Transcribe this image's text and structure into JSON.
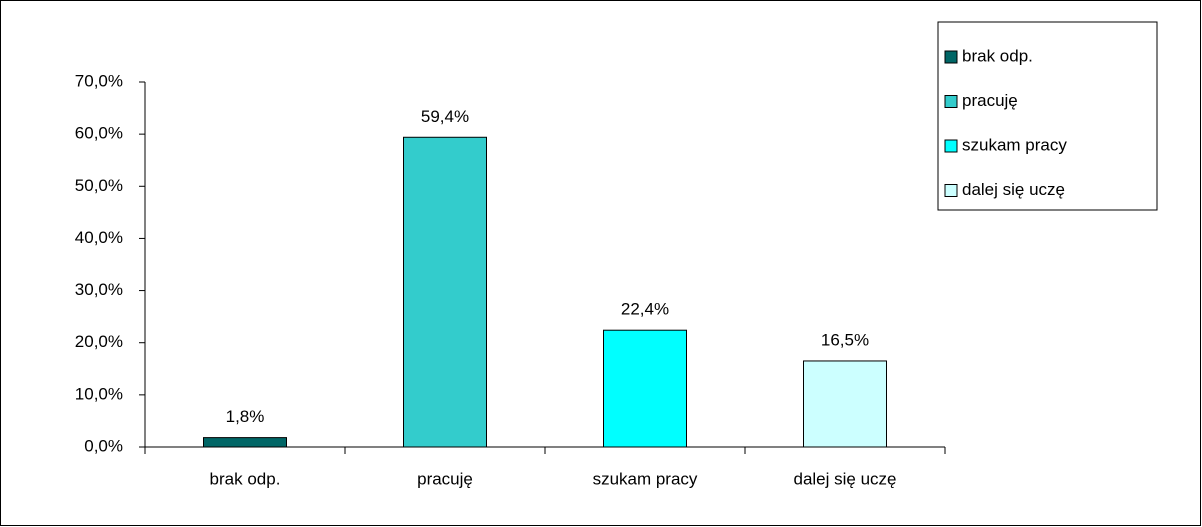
{
  "chart_data": {
    "type": "bar",
    "categories": [
      "brak odp.",
      "pracuję",
      "szukam pracy",
      "dalej się uczę"
    ],
    "values": [
      1.8,
      59.4,
      22.4,
      16.5
    ],
    "value_labels": [
      "1,8%",
      "59,4%",
      "22,4%",
      "16,5%"
    ],
    "colors": [
      "#006666",
      "#33cccc",
      "#00ffff",
      "#ccffff"
    ],
    "ylim": [
      0,
      70
    ],
    "yticks": [
      {
        "value": 0,
        "label": "0,0%"
      },
      {
        "value": 10,
        "label": "10,0%"
      },
      {
        "value": 20,
        "label": "20,0%"
      },
      {
        "value": 30,
        "label": "30,0%"
      },
      {
        "value": 40,
        "label": "40,0%"
      },
      {
        "value": 50,
        "label": "50,0%"
      },
      {
        "value": 60,
        "label": "60,0%"
      },
      {
        "value": 70,
        "label": "70,0%"
      }
    ],
    "legend": "top-right"
  }
}
